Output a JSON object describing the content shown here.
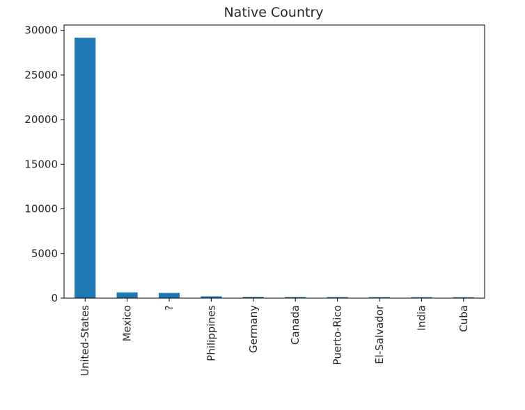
{
  "chart_data": {
    "type": "bar",
    "title": "Native Country",
    "xlabel": "",
    "ylabel": "",
    "categories": [
      "United-States",
      "Mexico",
      "?",
      "Philippines",
      "Germany",
      "Canada",
      "Puerto-Rico",
      "El-Salvador",
      "India",
      "Cuba"
    ],
    "values": [
      29170,
      643,
      583,
      198,
      137,
      121,
      114,
      106,
      100,
      95
    ],
    "ylim": [
      0,
      30600
    ],
    "yticks": [
      0,
      5000,
      10000,
      15000,
      20000,
      25000,
      30000
    ],
    "grid": false,
    "legend": "none",
    "bar_color": "#1f77b4"
  }
}
